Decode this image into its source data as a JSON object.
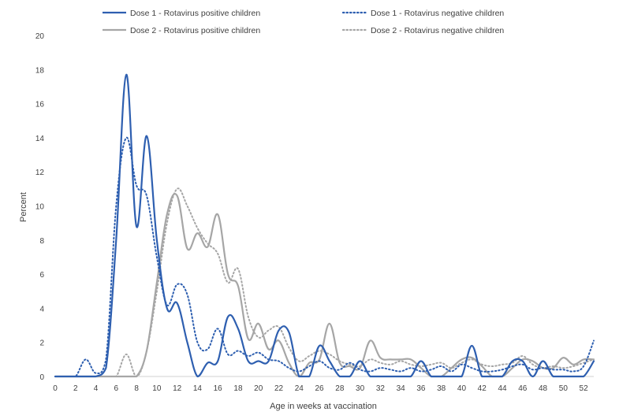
{
  "chart_data": {
    "type": "line",
    "title": "",
    "xlabel": "Age in weeks at vaccination",
    "ylabel": "Percent",
    "xlim": [
      0,
      53
    ],
    "ylim": [
      0,
      20
    ],
    "x_ticks": [
      0,
      2,
      4,
      6,
      8,
      10,
      12,
      14,
      16,
      18,
      20,
      22,
      24,
      26,
      28,
      30,
      32,
      34,
      36,
      38,
      40,
      42,
      44,
      46,
      48,
      50,
      52
    ],
    "y_ticks": [
      0,
      2,
      4,
      6,
      8,
      10,
      12,
      14,
      16,
      18,
      20
    ],
    "grid": false,
    "legend_position": "top",
    "series": [
      {
        "name": "Dose 1 - Rotavirus positive children",
        "color": "#2e5fb0",
        "dash": "solid",
        "points": [
          [
            0,
            0
          ],
          [
            1,
            0
          ],
          [
            2,
            0
          ],
          [
            3,
            0
          ],
          [
            4,
            0
          ],
          [
            5,
            0.5
          ],
          [
            6,
            8
          ],
          [
            7,
            17.7
          ],
          [
            8,
            8.8
          ],
          [
            9,
            14.1
          ],
          [
            10,
            8
          ],
          [
            11,
            4
          ],
          [
            12,
            4.3
          ],
          [
            13,
            2
          ],
          [
            14,
            0
          ],
          [
            15,
            0.8
          ],
          [
            16,
            0.9
          ],
          [
            17,
            3.5
          ],
          [
            18,
            2.8
          ],
          [
            19,
            0.9
          ],
          [
            20,
            0.9
          ],
          [
            21,
            0.9
          ],
          [
            22,
            2.7
          ],
          [
            23,
            2.6
          ],
          [
            24,
            0
          ],
          [
            25,
            0
          ],
          [
            26,
            1.8
          ],
          [
            27,
            0.9
          ],
          [
            28,
            0
          ],
          [
            29,
            0
          ],
          [
            30,
            0.9
          ],
          [
            31,
            0
          ],
          [
            32,
            0
          ],
          [
            33,
            0
          ],
          [
            34,
            0
          ],
          [
            35,
            0
          ],
          [
            36,
            0.9
          ],
          [
            37,
            0
          ],
          [
            38,
            0
          ],
          [
            39,
            0
          ],
          [
            40,
            0
          ],
          [
            41,
            1.8
          ],
          [
            42,
            0
          ],
          [
            43,
            0
          ],
          [
            44,
            0
          ],
          [
            45,
            0.9
          ],
          [
            46,
            0.9
          ],
          [
            47,
            0
          ],
          [
            48,
            0.9
          ],
          [
            49,
            0
          ],
          [
            50,
            0
          ],
          [
            51,
            0
          ],
          [
            52,
            0
          ],
          [
            53,
            0.9
          ]
        ]
      },
      {
        "name": "Dose 1 - Rotavirus negative children",
        "color": "#2e5fb0",
        "dash": "dotted",
        "points": [
          [
            0,
            0
          ],
          [
            1,
            0
          ],
          [
            2,
            0
          ],
          [
            3,
            1
          ],
          [
            4,
            0.2
          ],
          [
            5,
            1
          ],
          [
            6,
            10
          ],
          [
            7,
            14
          ],
          [
            8,
            11.2
          ],
          [
            9,
            10.6
          ],
          [
            10,
            7
          ],
          [
            11,
            4.2
          ],
          [
            12,
            5.4
          ],
          [
            13,
            4.8
          ],
          [
            14,
            2
          ],
          [
            15,
            1.6
          ],
          [
            16,
            2.8
          ],
          [
            17,
            1.3
          ],
          [
            18,
            1.5
          ],
          [
            19,
            1.2
          ],
          [
            20,
            1.4
          ],
          [
            21,
            1
          ],
          [
            22,
            0.9
          ],
          [
            23,
            0.5
          ],
          [
            24,
            0.3
          ],
          [
            25,
            0.6
          ],
          [
            26,
            0.9
          ],
          [
            27,
            0.5
          ],
          [
            28,
            0.4
          ],
          [
            29,
            0.8
          ],
          [
            30,
            0.4
          ],
          [
            31,
            0.3
          ],
          [
            32,
            0.5
          ],
          [
            33,
            0.4
          ],
          [
            34,
            0.3
          ],
          [
            35,
            0.5
          ],
          [
            36,
            0.3
          ],
          [
            37,
            0.4
          ],
          [
            38,
            0.6
          ],
          [
            39,
            0.3
          ],
          [
            40,
            0.7
          ],
          [
            41,
            0.5
          ],
          [
            42,
            0.3
          ],
          [
            43,
            0.3
          ],
          [
            44,
            0.4
          ],
          [
            45,
            0.6
          ],
          [
            46,
            0.7
          ],
          [
            47,
            0.4
          ],
          [
            48,
            0.5
          ],
          [
            49,
            0.4
          ],
          [
            50,
            0.4
          ],
          [
            51,
            0.3
          ],
          [
            52,
            0.6
          ],
          [
            53,
            2.1
          ]
        ]
      },
      {
        "name": "Dose 2 - Rotavirus positive children",
        "color": "#a6a6a6",
        "dash": "solid",
        "points": [
          [
            0,
            0
          ],
          [
            1,
            0
          ],
          [
            2,
            0
          ],
          [
            3,
            0
          ],
          [
            4,
            0
          ],
          [
            5,
            0
          ],
          [
            6,
            0
          ],
          [
            7,
            0
          ],
          [
            8,
            0
          ],
          [
            9,
            1.5
          ],
          [
            10,
            5.5
          ],
          [
            11,
            9.5
          ],
          [
            12,
            10.6
          ],
          [
            13,
            7.5
          ],
          [
            14,
            8.4
          ],
          [
            15,
            7.6
          ],
          [
            16,
            9.5
          ],
          [
            17,
            6
          ],
          [
            18,
            5.3
          ],
          [
            19,
            2.2
          ],
          [
            20,
            3.1
          ],
          [
            21,
            1.6
          ],
          [
            22,
            2.1
          ],
          [
            23,
            0.8
          ],
          [
            24,
            0
          ],
          [
            25,
            0.8
          ],
          [
            26,
            1
          ],
          [
            27,
            3.1
          ],
          [
            28,
            0.8
          ],
          [
            29,
            0.6
          ],
          [
            30,
            0.5
          ],
          [
            31,
            2.1
          ],
          [
            32,
            1.1
          ],
          [
            33,
            1
          ],
          [
            34,
            1
          ],
          [
            35,
            1
          ],
          [
            36,
            0.5
          ],
          [
            37,
            0
          ],
          [
            38,
            0
          ],
          [
            39,
            0.5
          ],
          [
            40,
            1
          ],
          [
            41,
            1.1
          ],
          [
            42,
            0.6
          ],
          [
            43,
            0
          ],
          [
            44,
            0
          ],
          [
            45,
            0.5
          ],
          [
            46,
            1
          ],
          [
            47,
            0.9
          ],
          [
            48,
            0.5
          ],
          [
            49,
            0.5
          ],
          [
            50,
            1.1
          ],
          [
            51,
            0.7
          ],
          [
            52,
            1
          ],
          [
            53,
            1
          ]
        ]
      },
      {
        "name": "Dose 2 - Rotavirus negative children",
        "color": "#a6a6a6",
        "dash": "dotted",
        "points": [
          [
            0,
            0
          ],
          [
            1,
            0
          ],
          [
            2,
            0
          ],
          [
            3,
            0
          ],
          [
            4,
            0
          ],
          [
            5,
            0
          ],
          [
            6,
            0
          ],
          [
            7,
            1.3
          ],
          [
            8,
            0
          ],
          [
            9,
            1.5
          ],
          [
            10,
            5
          ],
          [
            11,
            9
          ],
          [
            12,
            11
          ],
          [
            13,
            10
          ],
          [
            14,
            8.7
          ],
          [
            15,
            7.8
          ],
          [
            16,
            7.2
          ],
          [
            17,
            5.5
          ],
          [
            18,
            6.3
          ],
          [
            19,
            3.5
          ],
          [
            20,
            2.3
          ],
          [
            21,
            2.7
          ],
          [
            22,
            2.9
          ],
          [
            23,
            1.7
          ],
          [
            24,
            0.9
          ],
          [
            25,
            1.2
          ],
          [
            26,
            1.5
          ],
          [
            27,
            1.3
          ],
          [
            28,
            0.9
          ],
          [
            29,
            0.7
          ],
          [
            30,
            0.6
          ],
          [
            31,
            1
          ],
          [
            32,
            0.8
          ],
          [
            33,
            0.7
          ],
          [
            34,
            0.9
          ],
          [
            35,
            0.7
          ],
          [
            36,
            0.6
          ],
          [
            37,
            0.7
          ],
          [
            38,
            0.8
          ],
          [
            39,
            0.5
          ],
          [
            40,
            0.8
          ],
          [
            41,
            1
          ],
          [
            42,
            0.7
          ],
          [
            43,
            0.6
          ],
          [
            44,
            0.7
          ],
          [
            45,
            0.8
          ],
          [
            46,
            1.2
          ],
          [
            47,
            0.7
          ],
          [
            48,
            0.5
          ],
          [
            49,
            0.6
          ],
          [
            50,
            0.5
          ],
          [
            51,
            0.6
          ],
          [
            52,
            0.8
          ],
          [
            53,
            1
          ]
        ]
      }
    ]
  }
}
